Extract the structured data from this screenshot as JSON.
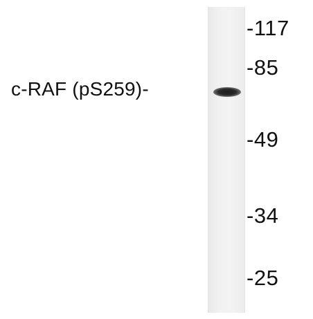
{
  "blot": {
    "band_label": "c-RAF (pS259)-",
    "markers": [
      {
        "label": "-117"
      },
      {
        "label": "-85"
      },
      {
        "label": "-49"
      },
      {
        "label": "-34"
      },
      {
        "label": "-25"
      }
    ]
  }
}
